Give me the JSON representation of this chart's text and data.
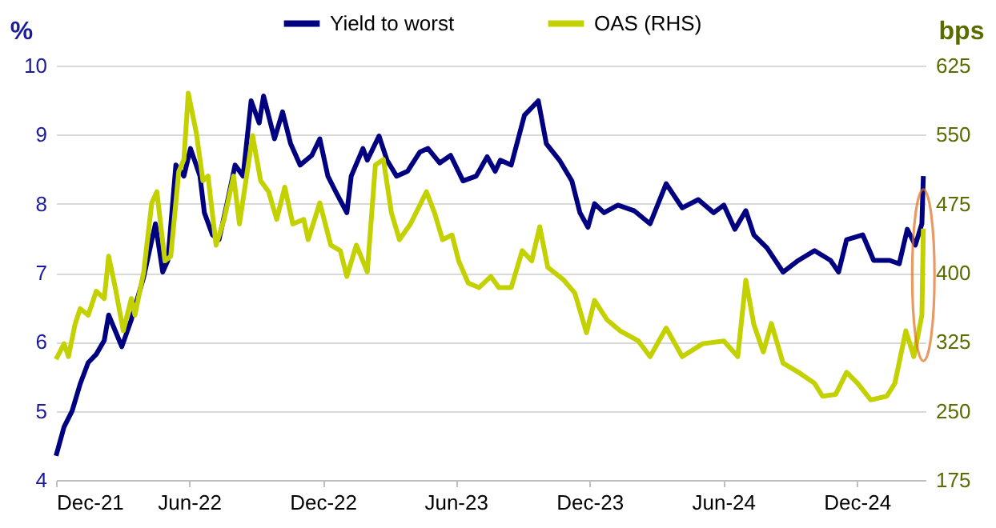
{
  "chart_data": {
    "type": "line",
    "ylabel": "%",
    "y2label": "bps",
    "legend": "top",
    "grid": "y",
    "line_style": "solid",
    "marker": "none",
    "xlim": [
      "2021-12-01",
      "2025-03-05"
    ],
    "xticks": [
      {
        "value": "2021-12-01",
        "label": "Dec-21"
      },
      {
        "value": "2022-06-01",
        "label": "Jun-22"
      },
      {
        "value": "2022-12-01",
        "label": "Dec-22"
      },
      {
        "value": "2023-06-01",
        "label": "Jun-23"
      },
      {
        "value": "2023-12-01",
        "label": "Dec-23"
      },
      {
        "value": "2024-06-01",
        "label": "Jun-24"
      },
      {
        "value": "2024-12-01",
        "label": "Dec-24"
      }
    ],
    "ylim": [
      4,
      10
    ],
    "yticks": [
      4,
      5,
      6,
      7,
      8,
      9,
      10
    ],
    "y2lim": [
      175,
      625
    ],
    "y2ticks": [
      175,
      250,
      325,
      400,
      475,
      550,
      625
    ],
    "series": [
      {
        "name": "Yield to worst",
        "color": "#000080",
        "x": [
          "2021-12-01",
          "2021-12-12",
          "2021-12-23",
          "2022-01-03",
          "2022-01-14",
          "2022-01-25",
          "2022-02-05",
          "2022-02-11",
          "2022-02-20",
          "2022-03-01",
          "2022-03-14",
          "2022-03-31",
          "2022-04-16",
          "2022-04-26",
          "2022-05-03",
          "2022-05-14",
          "2022-05-25",
          "2022-06-03",
          "2022-06-16",
          "2022-06-22",
          "2022-07-03",
          "2022-07-12",
          "2022-07-23",
          "2022-08-03",
          "2022-08-14",
          "2022-08-25",
          "2022-09-05",
          "2022-09-11",
          "2022-09-26",
          "2022-10-07",
          "2022-10-18",
          "2022-10-31",
          "2022-11-16",
          "2022-11-27",
          "2022-12-08",
          "2022-12-19",
          "2023-01-03",
          "2023-01-09",
          "2023-01-25",
          "2023-01-31",
          "2023-02-16",
          "2023-02-27",
          "2023-03-12",
          "2023-03-27",
          "2023-04-13",
          "2023-04-24",
          "2023-05-10",
          "2023-05-25",
          "2023-06-11",
          "2023-06-29",
          "2023-07-14",
          "2023-07-25",
          "2023-08-01",
          "2023-08-16",
          "2023-09-03",
          "2023-09-22",
          "2023-10-03",
          "2023-10-21",
          "2023-11-07",
          "2023-11-18",
          "2023-11-29",
          "2023-12-08",
          "2023-12-21",
          "2024-01-09",
          "2024-01-31",
          "2024-02-22",
          "2024-03-15",
          "2024-04-06",
          "2024-04-28",
          "2024-05-19",
          "2024-06-02",
          "2024-06-17",
          "2024-07-02",
          "2024-07-13",
          "2024-07-31",
          "2024-08-22",
          "2024-09-12",
          "2024-10-04",
          "2024-10-26",
          "2024-11-06",
          "2024-11-17",
          "2024-12-09",
          "2024-12-24",
          "2025-01-15",
          "2025-01-28",
          "2025-02-08",
          "2025-02-19",
          "2025-02-28",
          "2025-03-02"
        ],
        "values": [
          4.35,
          4.77,
          5.0,
          5.39,
          5.7,
          5.82,
          6.02,
          6.39,
          6.16,
          5.93,
          6.32,
          6.94,
          7.71,
          7.01,
          7.18,
          8.56,
          8.4,
          8.8,
          8.4,
          7.87,
          7.55,
          7.48,
          8.0,
          8.56,
          8.4,
          9.49,
          9.17,
          9.56,
          8.94,
          9.33,
          8.87,
          8.56,
          8.7,
          8.94,
          8.4,
          8.17,
          7.87,
          8.4,
          8.8,
          8.63,
          8.98,
          8.63,
          8.4,
          8.47,
          8.75,
          8.8,
          8.59,
          8.7,
          8.33,
          8.4,
          8.68,
          8.47,
          8.63,
          8.56,
          9.28,
          9.49,
          8.87,
          8.63,
          8.33,
          7.87,
          7.66,
          8.0,
          7.87,
          7.98,
          7.9,
          7.71,
          8.29,
          7.94,
          8.06,
          7.87,
          7.98,
          7.63,
          7.9,
          7.55,
          7.36,
          7.01,
          7.18,
          7.32,
          7.18,
          7.01,
          7.48,
          7.55,
          7.18,
          7.18,
          7.13,
          7.63,
          7.4,
          7.71,
          8.4
        ]
      },
      {
        "name": "OAS (RHS)",
        "color": "#c3d100",
        "axis": "y2",
        "x": [
          "2021-12-01",
          "2021-12-12",
          "2021-12-18",
          "2021-12-27",
          "2022-01-03",
          "2022-01-14",
          "2022-01-25",
          "2022-02-05",
          "2022-02-11",
          "2022-02-20",
          "2022-03-03",
          "2022-03-14",
          "2022-03-19",
          "2022-03-31",
          "2022-04-11",
          "2022-04-18",
          "2022-04-29",
          "2022-05-07",
          "2022-05-18",
          "2022-05-25",
          "2022-05-31",
          "2022-06-11",
          "2022-06-20",
          "2022-06-27",
          "2022-07-08",
          "2022-07-19",
          "2022-08-01",
          "2022-08-09",
          "2022-08-27",
          "2022-09-07",
          "2022-09-18",
          "2022-09-29",
          "2022-10-10",
          "2022-10-21",
          "2022-11-05",
          "2022-11-11",
          "2022-11-27",
          "2022-12-12",
          "2022-12-25",
          "2023-01-03",
          "2023-01-16",
          "2023-01-31",
          "2023-02-11",
          "2023-02-22",
          "2023-03-05",
          "2023-03-16",
          "2023-03-31",
          "2023-04-22",
          "2023-05-03",
          "2023-05-14",
          "2023-05-27",
          "2023-06-05",
          "2023-06-18",
          "2023-07-03",
          "2023-07-19",
          "2023-07-30",
          "2023-08-16",
          "2023-08-31",
          "2023-09-13",
          "2023-09-24",
          "2023-10-05",
          "2023-10-27",
          "2023-11-11",
          "2023-11-27",
          "2023-12-08",
          "2023-12-25",
          "2024-01-12",
          "2024-02-06",
          "2024-02-22",
          "2024-03-15",
          "2024-04-06",
          "2024-05-04",
          "2024-06-02",
          "2024-06-21",
          "2024-07-02",
          "2024-07-13",
          "2024-07-26",
          "2024-08-06",
          "2024-08-22",
          "2024-09-12",
          "2024-10-04",
          "2024-10-15",
          "2024-11-02",
          "2024-11-17",
          "2024-12-02",
          "2024-12-20",
          "2025-01-11",
          "2025-01-22",
          "2025-02-06",
          "2025-02-17",
          "2025-02-28",
          "2025-03-02"
        ],
        "values": [
          306,
          323,
          309,
          344,
          361,
          354,
          380,
          372,
          418,
          384,
          337,
          372,
          354,
          401,
          476,
          488,
          413,
          418,
          510,
          523,
          595,
          552,
          500,
          505,
          430,
          458,
          505,
          453,
          549,
          500,
          488,
          458,
          493,
          453,
          458,
          436,
          476,
          430,
          424,
          396,
          430,
          401,
          517,
          523,
          465,
          436,
          453,
          488,
          465,
          436,
          441,
          413,
          389,
          384,
          396,
          384,
          384,
          424,
          413,
          450,
          406,
          392,
          378,
          335,
          370,
          349,
          337,
          326,
          309,
          340,
          309,
          323,
          326,
          309,
          392,
          344,
          314,
          345,
          302,
          292,
          280,
          266,
          268,
          292,
          280,
          262,
          266,
          280,
          337,
          309,
          354,
          448
        ]
      }
    ]
  }
}
